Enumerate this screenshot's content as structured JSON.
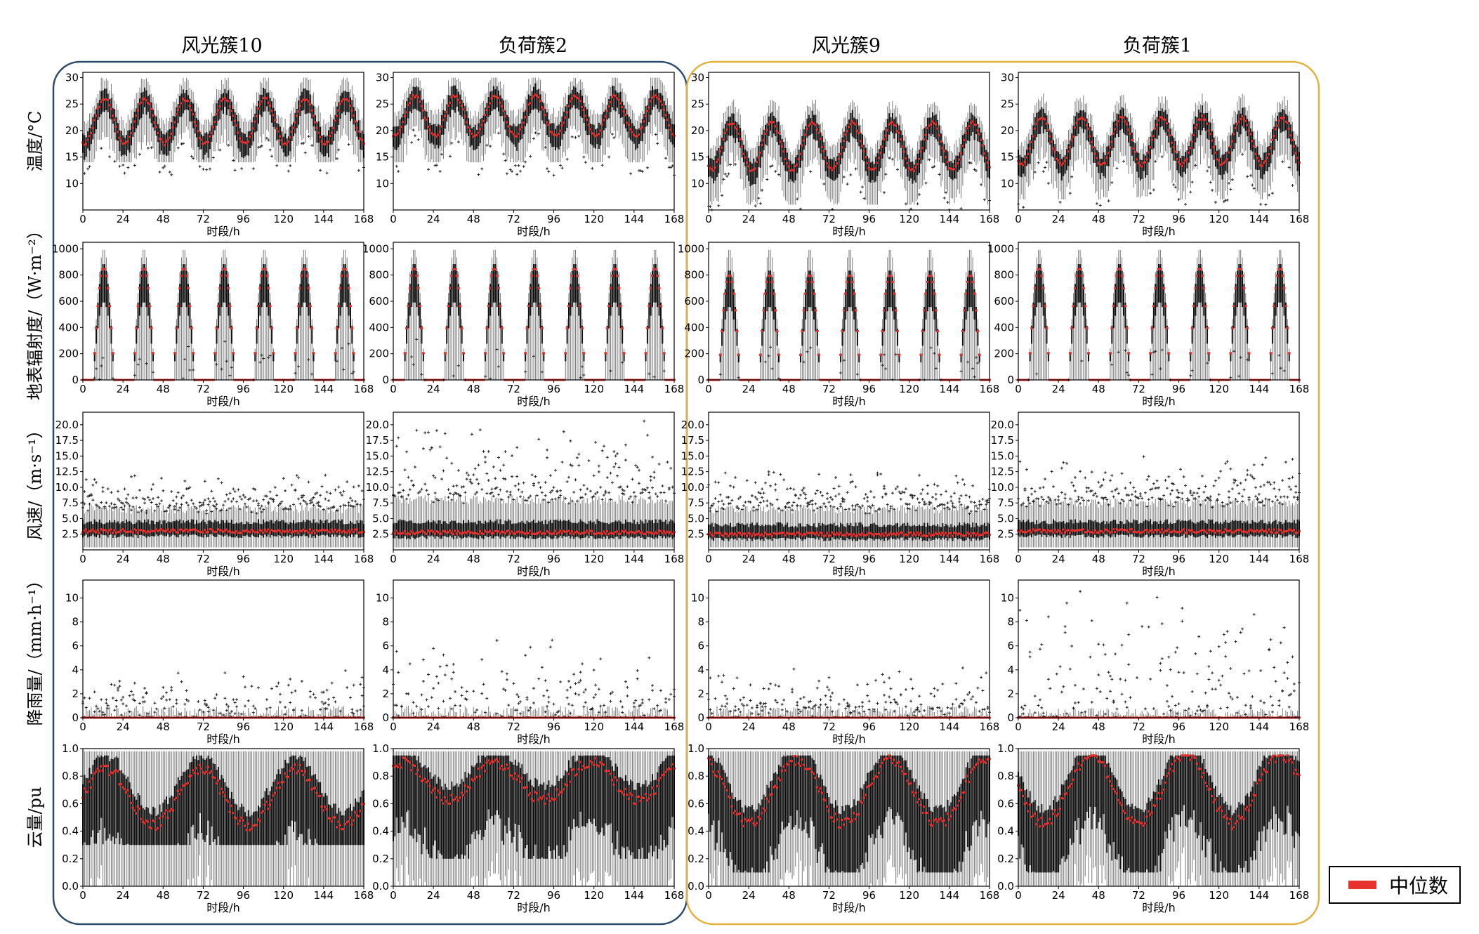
{
  "colors": {
    "median": "#e8322e",
    "box_fill": "#111111",
    "whisker": "#777777",
    "group_left_border": "#2c4a6a",
    "group_right_border": "#e3b13d",
    "outlier": "#222222"
  },
  "columns": [
    "风光簇10",
    "负荷簇2",
    "风光簇9",
    "负荷簇1"
  ],
  "rows": [
    {
      "ylabel": "温度/°C",
      "yticks": [
        "10",
        "15",
        "20",
        "25",
        "30"
      ]
    },
    {
      "ylabel": "地表辐射度/（W·m⁻²）",
      "yticks": [
        "0",
        "200",
        "400",
        "600",
        "800",
        "1000"
      ]
    },
    {
      "ylabel": "风速/（m·s⁻¹）",
      "yticks": [
        "2.5",
        "5.0",
        "7.5",
        "10.0",
        "12.5",
        "15.0",
        "17.5",
        "20.0"
      ]
    },
    {
      "ylabel": "降雨量/（mm·h⁻¹）",
      "yticks": [
        "0",
        "2",
        "4",
        "6",
        "8",
        "10"
      ]
    },
    {
      "ylabel": "云量/pu",
      "yticks": [
        "0.0",
        "0.2",
        "0.4",
        "0.6",
        "0.8",
        "1.0"
      ]
    }
  ],
  "xticks": [
    "0",
    "24",
    "48",
    "72",
    "96",
    "120",
    "144",
    "168"
  ],
  "xlabel": "时段/h",
  "legend": {
    "label": "中位数"
  },
  "chart_data": {
    "type": "box",
    "x": {
      "min": 0,
      "max": 168,
      "step_hours": 1
    },
    "panels": [
      {
        "column": "风光簇10",
        "variable": "温度",
        "ylim": [
          5,
          31
        ],
        "median_daily_min": 17.5,
        "median_daily_max": 26.0,
        "peak_hour": 13,
        "whisker_low": 14,
        "whisker_high": 30
      },
      {
        "column": "负荷簇2",
        "variable": "温度",
        "ylim": [
          5,
          31
        ],
        "median_daily_min": 19.0,
        "median_daily_max": 26.5,
        "peak_hour": 13,
        "whisker_low": 14,
        "whisker_high": 30
      },
      {
        "column": "风光簇9",
        "variable": "温度",
        "ylim": [
          5,
          31
        ],
        "median_daily_min": 12.5,
        "median_daily_max": 21.5,
        "peak_hour": 14,
        "whisker_low": 6,
        "whisker_high": 27
      },
      {
        "column": "负荷簇1",
        "variable": "温度",
        "ylim": [
          5,
          31
        ],
        "median_daily_min": 13.5,
        "median_daily_max": 22.5,
        "peak_hour": 14,
        "whisker_low": 7,
        "whisker_high": 27
      },
      {
        "column": "风光簇10",
        "variable": "地表辐射度",
        "ylim": [
          0,
          1050
        ],
        "daylight_start": 6,
        "daylight_end": 19,
        "median_peak": 850,
        "whisker_peak": 1000
      },
      {
        "column": "负荷簇2",
        "variable": "地表辐射度",
        "ylim": [
          0,
          1050
        ],
        "daylight_start": 6,
        "daylight_end": 19,
        "median_peak": 850,
        "whisker_peak": 1000
      },
      {
        "column": "风光簇9",
        "variable": "地表辐射度",
        "ylim": [
          0,
          1050
        ],
        "daylight_start": 6,
        "daylight_end": 19,
        "median_peak": 800,
        "whisker_peak": 1000
      },
      {
        "column": "负荷簇1",
        "variable": "地表辐射度",
        "ylim": [
          0,
          1050
        ],
        "daylight_start": 6,
        "daylight_end": 19,
        "median_peak": 850,
        "whisker_peak": 1000
      },
      {
        "column": "风光簇10",
        "variable": "风速",
        "ylim": [
          0,
          22
        ],
        "median": 3.0,
        "q3": 4.5,
        "whisker_high": 6.5,
        "max_outlier": 12.5
      },
      {
        "column": "负荷簇2",
        "variable": "风速",
        "ylim": [
          0,
          22
        ],
        "median": 2.8,
        "q3": 4.5,
        "whisker_high": 8.0,
        "max_outlier": 21.5
      },
      {
        "column": "风光簇9",
        "variable": "风速",
        "ylim": [
          0,
          22
        ],
        "median": 2.5,
        "q3": 4.0,
        "whisker_high": 6.5,
        "max_outlier": 13.0
      },
      {
        "column": "负荷簇1",
        "variable": "风速",
        "ylim": [
          0,
          22
        ],
        "median": 3.0,
        "q3": 4.5,
        "whisker_high": 7.5,
        "max_outlier": 15.5
      },
      {
        "column": "风光簇10",
        "variable": "降雨量",
        "ylim": [
          0,
          11.5
        ],
        "median": 0.0,
        "whisker_high": 1.0,
        "max_outlier": 4.5
      },
      {
        "column": "负荷簇2",
        "variable": "降雨量",
        "ylim": [
          0,
          11.5
        ],
        "median": 0.0,
        "whisker_high": 1.0,
        "max_outlier": 7.0
      },
      {
        "column": "风光簇9",
        "variable": "降雨量",
        "ylim": [
          0,
          11.5
        ],
        "median": 0.0,
        "whisker_high": 1.0,
        "max_outlier": 4.5
      },
      {
        "column": "负荷簇1",
        "variable": "降雨量",
        "ylim": [
          0,
          11.5
        ],
        "median": 0.0,
        "whisker_high": 0.8,
        "max_outlier": 11.0
      },
      {
        "column": "风光簇10",
        "variable": "云量",
        "ylim": [
          0,
          1.0
        ],
        "median_range": [
          0.4,
          0.85
        ],
        "q1_low": 0.3,
        "whisker_high": 0.98
      },
      {
        "column": "负荷簇2",
        "variable": "云量",
        "ylim": [
          0,
          1.0
        ],
        "median_range": [
          0.6,
          0.9
        ],
        "q1_low": 0.2,
        "whisker_high": 0.98
      },
      {
        "column": "风光簇9",
        "variable": "云量",
        "ylim": [
          0,
          1.0
        ],
        "median_range": [
          0.4,
          0.92
        ],
        "q1_low": 0.1,
        "whisker_high": 0.98
      },
      {
        "column": "负荷簇1",
        "variable": "云量",
        "ylim": [
          0,
          1.0
        ],
        "median_range": [
          0.4,
          0.95
        ],
        "q1_low": 0.1,
        "whisker_high": 0.98
      }
    ]
  }
}
